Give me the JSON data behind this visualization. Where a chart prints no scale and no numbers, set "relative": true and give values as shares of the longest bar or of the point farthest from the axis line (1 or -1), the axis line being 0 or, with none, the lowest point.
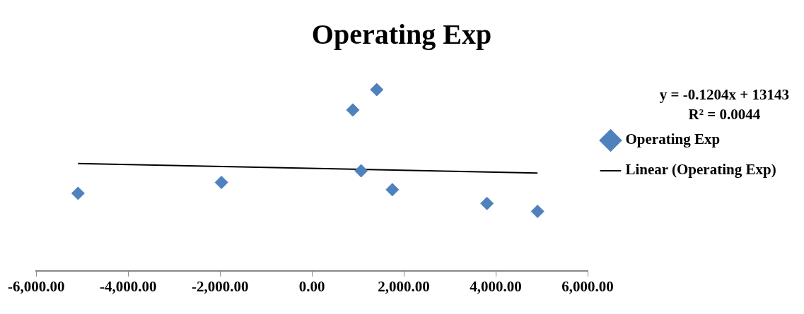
{
  "chart_data": {
    "type": "scatter",
    "title": "Operating Exp",
    "relative": true,
    "xlim": [
      -6000,
      6000
    ],
    "xticks": [
      {
        "value": -6000,
        "label": "-6,000.00"
      },
      {
        "value": -4000,
        "label": "-4,000.00"
      },
      {
        "value": -2000,
        "label": "-2,000.00"
      },
      {
        "value": 0,
        "label": "0.00"
      },
      {
        "value": 2000,
        "label": "2,000.00"
      },
      {
        "value": 4000,
        "label": "4,000.00"
      },
      {
        "value": 6000,
        "label": "6,000.00"
      }
    ],
    "x": [
      -5090,
      -1970,
      890,
      1410,
      1070,
      1750,
      3810,
      4910
    ],
    "series": [
      {
        "name": "Operating Exp",
        "color": "#4f81bd",
        "marker": "diamond",
        "values": [
          0.428,
          0.488,
          0.888,
          1,
          0.552,
          0.448,
          0.372,
          0.328
        ]
      },
      {
        "name": "Linear (Operating Exp)",
        "type": "line",
        "color": "#000000",
        "marker": "none",
        "line_style": "solid",
        "x": [
          -5090,
          4910
        ],
        "values": [
          0.592,
          0.54
        ]
      }
    ],
    "annotations": [
      "y = -0.1204x + 13143",
      "R² = 0.0044"
    ],
    "legend": "right",
    "grid": false,
    "tick_labels": "x"
  }
}
